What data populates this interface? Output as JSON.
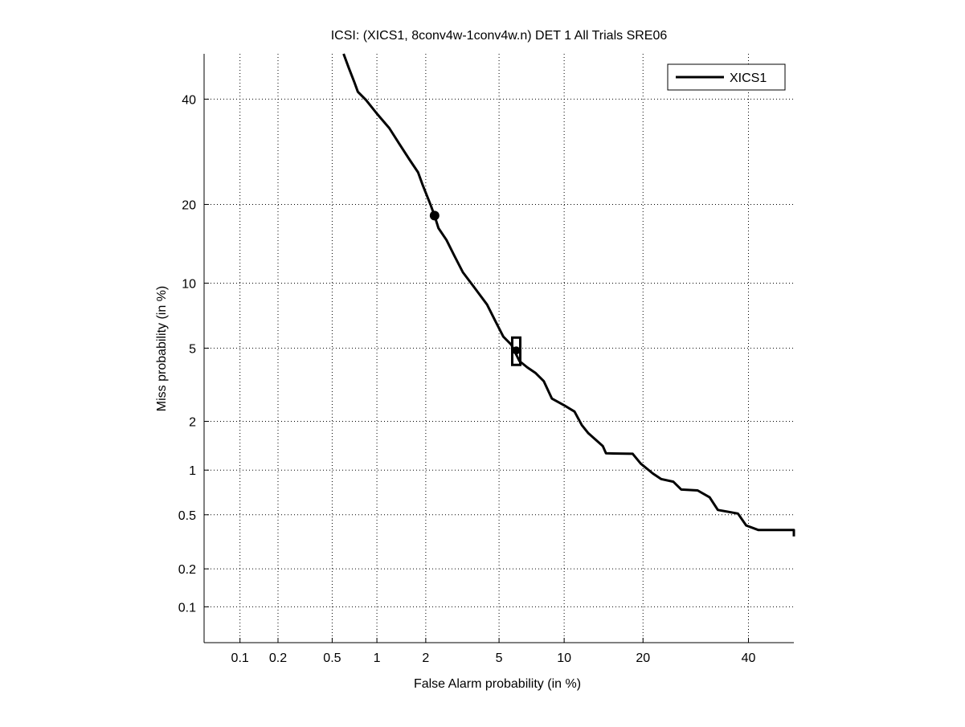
{
  "chart_data": {
    "type": "line",
    "scale": "normal-deviate",
    "title": "ICSI: (XICS1, 8conv4w-1conv4w.n) DET 1 All Trials SRE06",
    "xlabel": "False Alarm probability (in %)",
    "ylabel": "Miss probability (in %)",
    "xlim": [
      0.05,
      50
    ],
    "ylim": [
      0.05,
      50
    ],
    "grid": true,
    "legend_position": "top-right",
    "x_ticks": [
      0.1,
      0.2,
      0.5,
      1,
      2,
      5,
      10,
      20,
      40
    ],
    "x_tick_labels": [
      "0.1",
      "0.2",
      "0.5",
      "1",
      "2",
      "5",
      "10",
      "20",
      "40"
    ],
    "y_ticks": [
      0.1,
      0.2,
      0.5,
      1,
      2,
      5,
      10,
      20,
      40
    ],
    "y_tick_labels": [
      "0.1",
      "0.2",
      "0.5",
      "1",
      "2",
      "5",
      "10",
      "20",
      "40"
    ],
    "series": [
      {
        "name": "XICS1",
        "color": "#000000",
        "fa": [
          0.6,
          0.65,
          0.71,
          0.75,
          0.85,
          1.0,
          1.2,
          1.39,
          1.61,
          1.8,
          1.91,
          2.13,
          2.25,
          2.37,
          2.63,
          2.92,
          3.24,
          3.76,
          4.35,
          4.78,
          5.25,
          5.75,
          6.29,
          6.86,
          7.48,
          8.14,
          8.85,
          9.98,
          11.05,
          11.84,
          12.57,
          14.32,
          14.73,
          18.43,
          19.65,
          21.59,
          22.93,
          25.05,
          26.5,
          29.56,
          31.92,
          33.58,
          37.75,
          39.51,
          42.11,
          50,
          50
        ],
        "miss": [
          50,
          46.9,
          43.7,
          41.6,
          39.8,
          36.9,
          33.9,
          30.7,
          27.6,
          25.4,
          23.3,
          20.0,
          18.3,
          16.5,
          14.9,
          12.9,
          11.1,
          9.5,
          8.05,
          6.8,
          5.7,
          5.2,
          4.3,
          3.98,
          3.72,
          3.37,
          2.7,
          2.48,
          2.28,
          1.9,
          1.7,
          1.42,
          1.28,
          1.27,
          1.1,
          0.95,
          0.875,
          0.84,
          0.745,
          0.735,
          0.66,
          0.54,
          0.51,
          0.42,
          0.39,
          0.39,
          0.35
        ]
      }
    ],
    "markers": [
      {
        "name": "min-dcf-point",
        "shape": "circle",
        "fa": 2.25,
        "miss": 18.3
      },
      {
        "name": "actual-dcf-point",
        "shape": "square-with-dot",
        "fa": 6.07,
        "miss": 4.87
      }
    ]
  }
}
